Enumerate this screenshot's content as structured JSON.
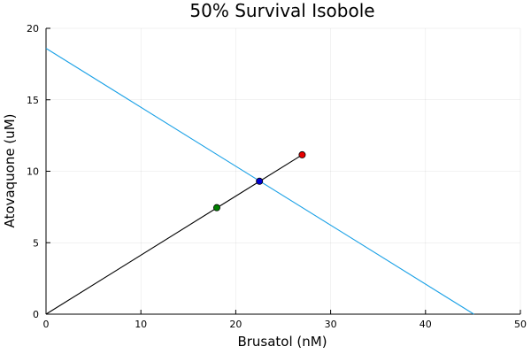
{
  "chart_data": {
    "type": "line",
    "title": "50% Survival Isobole",
    "xlabel": "Brusatol (nM)",
    "ylabel": "Atovaquone (uM)",
    "xlim": [
      0,
      50
    ],
    "ylim": [
      0,
      20
    ],
    "xticks": [
      "0",
      "10",
      "20",
      "30",
      "40",
      "50"
    ],
    "yticks": [
      "0",
      "5",
      "10",
      "15",
      "20"
    ],
    "grid": true,
    "legend": "none",
    "series": [
      {
        "kind": "line",
        "color": "#1ba1e6",
        "x": [
          0,
          45.1
        ],
        "y": [
          18.6,
          0
        ]
      },
      {
        "kind": "line",
        "color": "#000000",
        "x": [
          0,
          27.0
        ],
        "y": [
          0,
          11.15
        ]
      }
    ],
    "points": [
      {
        "x": 18.0,
        "y": 7.45,
        "color": "#008000"
      },
      {
        "x": 22.5,
        "y": 9.3,
        "color": "#0000d4"
      },
      {
        "x": 27.0,
        "y": 11.15,
        "color": "#e60000"
      }
    ]
  }
}
